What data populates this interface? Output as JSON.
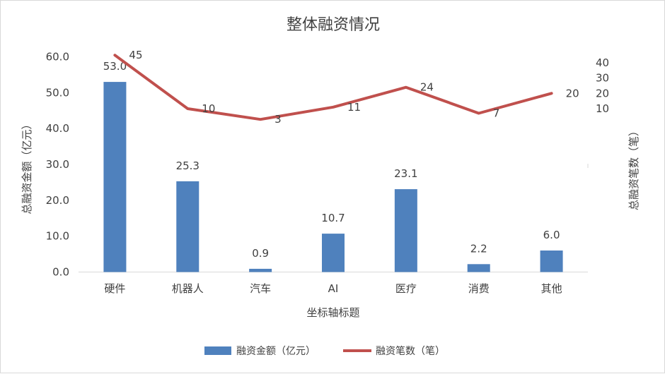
{
  "chart_data": {
    "type": "bar",
    "title": "整体融资情况",
    "xlabel": "坐标轴标题",
    "ylabel": "总融资金额（亿元）",
    "y2label": "总融资笔数（笔）",
    "categories": [
      "硬件",
      "机器人",
      "汽车",
      "AI",
      "医疗",
      "消费",
      "其他"
    ],
    "ylim": [
      0,
      60
    ],
    "yticks": [
      "0.0",
      "10.0",
      "20.0",
      "30.0",
      "40.0",
      "50.0",
      "60.0"
    ],
    "y2ticks": [
      "10",
      "20",
      "30",
      "40"
    ],
    "series": [
      {
        "name": "融资金额（亿元）",
        "type": "bar",
        "axis": "left",
        "color": "#4f81bd",
        "values": [
          53.0,
          25.3,
          0.9,
          10.7,
          23.1,
          2.2,
          6.0
        ],
        "labels": [
          "53.0",
          "25.3",
          "0.9",
          "10.7",
          "23.1",
          "2.2",
          "6.0"
        ]
      },
      {
        "name": "融资笔数（笔）",
        "type": "line",
        "axis": "right",
        "color": "#c0504d",
        "values": [
          45,
          10,
          3,
          11,
          24,
          7,
          20
        ],
        "labels": [
          "45",
          "10",
          "3",
          "11",
          "24",
          "7",
          "20"
        ]
      }
    ],
    "legend": "bottom",
    "grid": false
  }
}
